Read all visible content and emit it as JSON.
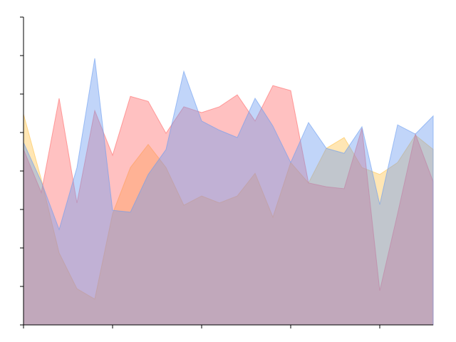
{
  "chart_data": {
    "type": "area",
    "x": [
      0,
      1,
      2,
      3,
      4,
      5,
      6,
      7,
      8,
      9,
      10,
      11,
      12,
      13,
      14,
      15,
      16,
      17,
      18,
      19,
      20,
      21,
      22,
      23
    ],
    "series": [
      {
        "color": "#ffc34d",
        "values": [
          5.48,
          3.78,
          1.87,
          0.94,
          0.67,
          2.89,
          4.09,
          4.69,
          4.09,
          3.11,
          3.35,
          3.17,
          3.35,
          3.94,
          2.8,
          4.22,
          3.69,
          4.59,
          4.87,
          4.09,
          3.91,
          4.22,
          4.93,
          4.56
        ]
      },
      {
        "color": "#ff6b6b",
        "values": [
          4.56,
          3.44,
          5.89,
          3.17,
          5.57,
          4.41,
          5.94,
          5.81,
          4.98,
          5.67,
          5.52,
          5.67,
          5.98,
          5.3,
          6.22,
          6.09,
          3.69,
          3.59,
          3.54,
          5.11,
          0.89,
          2.89,
          4.96,
          3.72
        ]
      },
      {
        "color": "#6b9cf0",
        "values": [
          4.74,
          3.72,
          2.48,
          4.09,
          6.93,
          2.98,
          2.93,
          3.91,
          4.56,
          6.59,
          5.3,
          5.06,
          4.87,
          5.89,
          5.17,
          4.22,
          5.26,
          4.59,
          4.46,
          5.15,
          3.13,
          5.2,
          4.96,
          5.43
        ]
      }
    ],
    "xlim": [
      0,
      23
    ],
    "xticks": [
      0,
      5,
      10,
      15,
      20
    ],
    "ylim": [
      0,
      8
    ],
    "yticks": [
      0,
      1,
      2,
      3,
      4,
      5,
      6,
      7,
      8
    ]
  }
}
